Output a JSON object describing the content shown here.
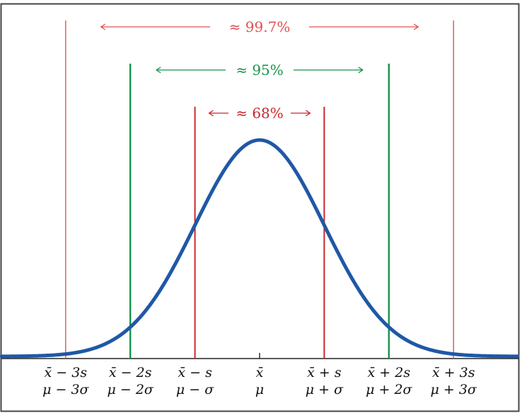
{
  "chart_data": {
    "type": "line",
    "title": "",
    "description": "Normal distribution curve with the empirical 68-95-99.7 rule",
    "xlabel": "",
    "ylabel": "",
    "grid": false,
    "legend": null,
    "x_ticks": [
      {
        "pos": -3,
        "sample": "x̄ − 3s",
        "population": "μ − 3σ"
      },
      {
        "pos": -2,
        "sample": "x̄ − 2s",
        "population": "μ − 2σ"
      },
      {
        "pos": -1,
        "sample": "x̄ − s",
        "population": "μ − σ"
      },
      {
        "pos": 0,
        "sample": "x̄",
        "population": "μ"
      },
      {
        "pos": 1,
        "sample": "x̄ + s",
        "population": "μ + σ"
      },
      {
        "pos": 2,
        "sample": "x̄ + 2s",
        "population": "μ + 2σ"
      },
      {
        "pos": 3,
        "sample": "x̄ + 3s",
        "population": "μ + 3σ"
      }
    ],
    "series": [
      {
        "name": "normal-pdf",
        "color": "#1f58a6",
        "mean": 0,
        "sd": 1,
        "x_range": [
          -4,
          4
        ]
      }
    ],
    "intervals": [
      {
        "label": "≈ 68%",
        "from": -1,
        "to": 1,
        "color": "#cc2e2e"
      },
      {
        "label": "≈ 95%",
        "from": -2,
        "to": 2,
        "color": "#1f9a50"
      },
      {
        "label": "≈ 99.7%",
        "from": -3,
        "to": 3,
        "color": "#d94444"
      }
    ],
    "xlim": [
      -4.02,
      4.02
    ]
  },
  "colors": {
    "curve": "#1f58a6",
    "one_sigma": "#c8282c",
    "two_sigma": "#17934a",
    "three_sigma": "#e05050",
    "axis": "#222222",
    "frame": "#444444"
  }
}
